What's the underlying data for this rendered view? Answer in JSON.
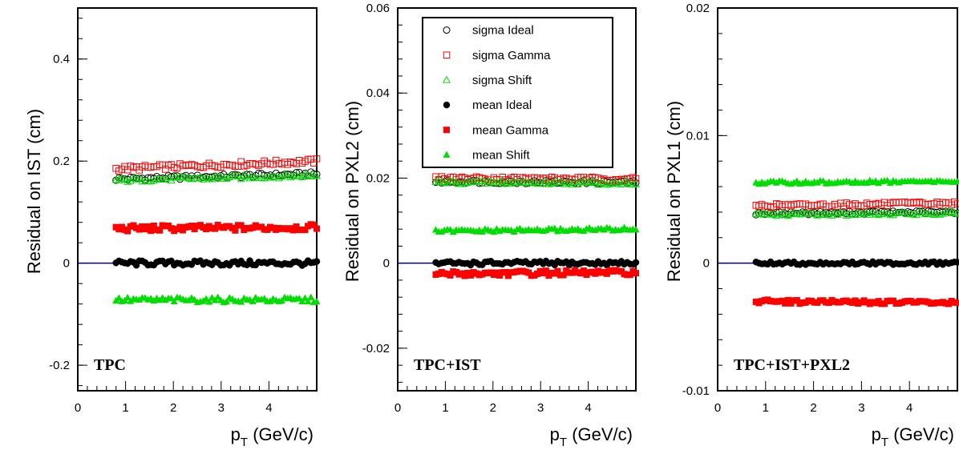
{
  "colors": {
    "ideal": "#000000",
    "gamma": "#ff0000",
    "shift": "#00dd00",
    "zero_line": "#000080"
  },
  "legend": {
    "entries": [
      {
        "label": "sigma Ideal",
        "marker": "open-circle",
        "color": "#000000"
      },
      {
        "label": "sigma Gamma",
        "marker": "open-square",
        "color": "#ff0000"
      },
      {
        "label": "sigma Shift",
        "marker": "open-triangle",
        "color": "#00dd00"
      },
      {
        "label": "mean Ideal",
        "marker": "filled-circle",
        "color": "#000000"
      },
      {
        "label": "mean Gamma",
        "marker": "filled-square",
        "color": "#ff0000"
      },
      {
        "label": "mean Shift",
        "marker": "filled-triangle",
        "color": "#00dd00"
      }
    ]
  },
  "chart_data": [
    {
      "type": "scatter",
      "panel_label": "TPC",
      "xlabel": "p_T (GeV/c)",
      "ylabel": "Residual on IST (cm)",
      "xlim": [
        0,
        5
      ],
      "ylim": [
        -0.25,
        0.5
      ],
      "x_ticks": [
        "0",
        "1",
        "2",
        "3",
        "4"
      ],
      "y_ticks": [
        {
          "v": -0.2,
          "label": "-0.2"
        },
        {
          "v": 0,
          "label": "0"
        },
        {
          "v": 0.2,
          "label": "0.2"
        },
        {
          "v": 0.4,
          "label": "0.4"
        }
      ],
      "x_range": [
        0.8,
        5.0
      ],
      "n_points": 70,
      "legend_shown": false,
      "series": [
        {
          "name": "sigma Ideal",
          "marker": "open-circle",
          "color": "#000000",
          "y_start": 0.165,
          "y_end": 0.175,
          "spread": 0.004
        },
        {
          "name": "sigma Gamma",
          "marker": "open-square",
          "color": "#ff0000",
          "y_start": 0.185,
          "y_end": 0.2,
          "spread": 0.005
        },
        {
          "name": "sigma Shift",
          "marker": "open-triangle",
          "color": "#00dd00",
          "y_start": 0.162,
          "y_end": 0.172,
          "spread": 0.004
        },
        {
          "name": "mean Ideal",
          "marker": "filled-circle",
          "color": "#000000",
          "y_start": 0.0,
          "y_end": 0.0,
          "spread": 0.005
        },
        {
          "name": "mean Gamma",
          "marker": "filled-square",
          "color": "#ff0000",
          "y_start": 0.068,
          "y_end": 0.07,
          "spread": 0.006
        },
        {
          "name": "mean Shift",
          "marker": "filled-triangle",
          "color": "#00dd00",
          "y_start": -0.072,
          "y_end": -0.072,
          "spread": 0.005
        }
      ]
    },
    {
      "type": "scatter",
      "panel_label": "TPC+IST",
      "xlabel": "p_T (GeV/c)",
      "ylabel": "Residual on PXL2 (cm)",
      "xlim": [
        0,
        5
      ],
      "ylim": [
        -0.03,
        0.06
      ],
      "x_ticks": [
        "0",
        "1",
        "2",
        "3",
        "4"
      ],
      "y_ticks": [
        {
          "v": -0.02,
          "label": "-0.02"
        },
        {
          "v": 0,
          "label": "0"
        },
        {
          "v": 0.02,
          "label": "0.02"
        },
        {
          "v": 0.04,
          "label": "0.04"
        },
        {
          "v": 0.06,
          "label": "0.06"
        }
      ],
      "x_range": [
        0.8,
        5.0
      ],
      "n_points": 70,
      "legend_shown": true,
      "series": [
        {
          "name": "sigma Ideal",
          "marker": "open-circle",
          "color": "#000000",
          "y_start": 0.0192,
          "y_end": 0.019,
          "spread": 0.0004
        },
        {
          "name": "sigma Gamma",
          "marker": "open-square",
          "color": "#ff0000",
          "y_start": 0.02,
          "y_end": 0.0198,
          "spread": 0.0004
        },
        {
          "name": "sigma Shift",
          "marker": "open-triangle",
          "color": "#00dd00",
          "y_start": 0.019,
          "y_end": 0.0188,
          "spread": 0.0004
        },
        {
          "name": "mean Ideal",
          "marker": "filled-circle",
          "color": "#000000",
          "y_start": 0.0,
          "y_end": 0.0,
          "spread": 0.0005
        },
        {
          "name": "mean Gamma",
          "marker": "filled-square",
          "color": "#ff0000",
          "y_start": -0.0025,
          "y_end": -0.0022,
          "spread": 0.0006
        },
        {
          "name": "mean Shift",
          "marker": "filled-triangle",
          "color": "#00dd00",
          "y_start": 0.0075,
          "y_end": 0.008,
          "spread": 0.0004
        }
      ]
    },
    {
      "type": "scatter",
      "panel_label": "TPC+IST+PXL2",
      "xlabel": "p_T (GeV/c)",
      "ylabel": "Residual on PXL1 (cm)",
      "xlim": [
        0,
        5
      ],
      "ylim": [
        -0.01,
        0.02
      ],
      "x_ticks": [
        "0",
        "1",
        "2",
        "3",
        "4"
      ],
      "y_ticks": [
        {
          "v": -0.01,
          "label": "-0.01"
        },
        {
          "v": 0,
          "label": "0"
        },
        {
          "v": 0.01,
          "label": "0.01"
        },
        {
          "v": 0.02,
          "label": "0.02"
        }
      ],
      "x_range": [
        0.8,
        5.0
      ],
      "n_points": 70,
      "legend_shown": false,
      "series": [
        {
          "name": "sigma Ideal",
          "marker": "open-circle",
          "color": "#000000",
          "y_start": 0.0039,
          "y_end": 0.004,
          "spread": 0.00012
        },
        {
          "name": "sigma Gamma",
          "marker": "open-square",
          "color": "#ff0000",
          "y_start": 0.0045,
          "y_end": 0.0047,
          "spread": 0.00015
        },
        {
          "name": "sigma Shift",
          "marker": "open-triangle",
          "color": "#00dd00",
          "y_start": 0.0038,
          "y_end": 0.0039,
          "spread": 0.00012
        },
        {
          "name": "mean Ideal",
          "marker": "filled-circle",
          "color": "#000000",
          "y_start": 0.0,
          "y_end": 0.0,
          "spread": 0.00012
        },
        {
          "name": "mean Gamma",
          "marker": "filled-square",
          "color": "#ff0000",
          "y_start": -0.003,
          "y_end": -0.0031,
          "spread": 0.00015
        },
        {
          "name": "mean Shift",
          "marker": "filled-triangle",
          "color": "#00dd00",
          "y_start": 0.0063,
          "y_end": 0.0064,
          "spread": 0.00012
        }
      ]
    }
  ]
}
